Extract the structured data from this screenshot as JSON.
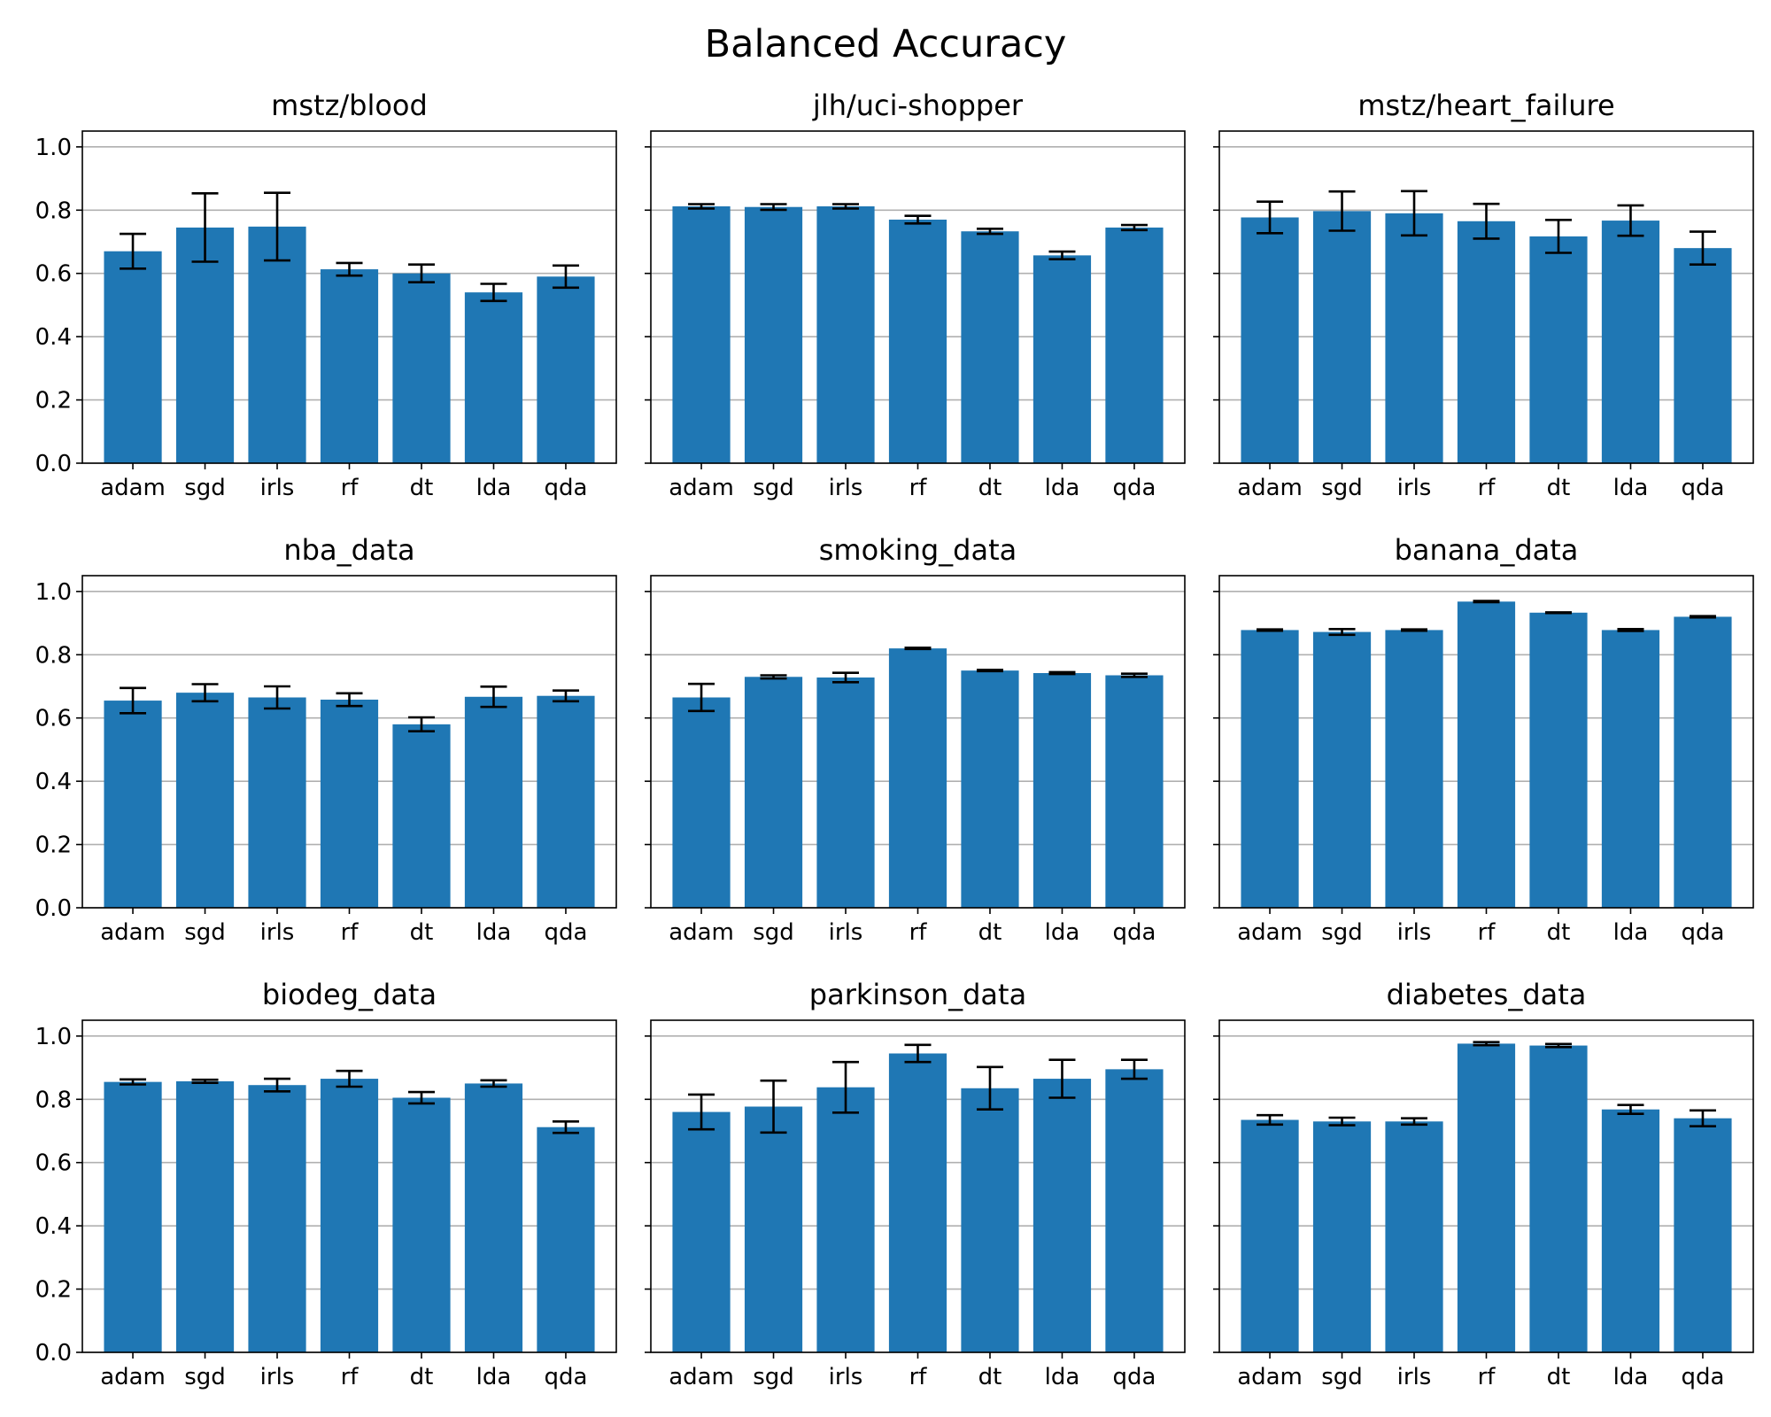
{
  "chart_data": {
    "type": "bar",
    "title": "Balanced Accuracy",
    "categories": [
      "adam",
      "sgd",
      "irls",
      "rf",
      "dt",
      "lda",
      "qda"
    ],
    "ylim": [
      0.0,
      1.0
    ],
    "yticks": [
      "0.0",
      "0.2",
      "0.4",
      "0.6",
      "0.8",
      "1.0"
    ],
    "grid": "y",
    "bar_color": "#1f77b4",
    "panels": [
      {
        "title": "mstz/blood",
        "values": [
          0.67,
          0.745,
          0.748,
          0.613,
          0.6,
          0.54,
          0.59
        ],
        "errors": [
          0.055,
          0.108,
          0.107,
          0.02,
          0.028,
          0.027,
          0.035
        ]
      },
      {
        "title": "jlh/uci-shopper",
        "values": [
          0.812,
          0.81,
          0.812,
          0.77,
          0.733,
          0.657,
          0.745
        ],
        "errors": [
          0.007,
          0.009,
          0.007,
          0.012,
          0.008,
          0.012,
          0.008
        ]
      },
      {
        "title": "mstz/heart_failure",
        "values": [
          0.777,
          0.797,
          0.79,
          0.765,
          0.717,
          0.767,
          0.68
        ],
        "errors": [
          0.05,
          0.062,
          0.07,
          0.055,
          0.052,
          0.048,
          0.052
        ]
      },
      {
        "title": "nba_data",
        "values": [
          0.655,
          0.68,
          0.665,
          0.658,
          0.58,
          0.667,
          0.67
        ],
        "errors": [
          0.04,
          0.027,
          0.035,
          0.02,
          0.022,
          0.032,
          0.017
        ]
      },
      {
        "title": "smoking_data",
        "values": [
          0.665,
          0.73,
          0.728,
          0.82,
          0.75,
          0.742,
          0.735
        ],
        "errors": [
          0.043,
          0.005,
          0.015,
          0.002,
          0.002,
          0.003,
          0.005
        ]
      },
      {
        "title": "banana_data",
        "values": [
          0.878,
          0.872,
          0.878,
          0.968,
          0.933,
          0.878,
          0.92
        ],
        "errors": [
          0.002,
          0.009,
          0.002,
          0.002,
          0.001,
          0.003,
          0.002
        ]
      },
      {
        "title": "biodeg_data",
        "values": [
          0.855,
          0.857,
          0.845,
          0.865,
          0.805,
          0.85,
          0.712
        ],
        "errors": [
          0.008,
          0.005,
          0.02,
          0.025,
          0.018,
          0.01,
          0.018
        ]
      },
      {
        "title": "parkinson_data",
        "values": [
          0.76,
          0.777,
          0.838,
          0.945,
          0.835,
          0.865,
          0.895
        ],
        "errors": [
          0.055,
          0.082,
          0.08,
          0.027,
          0.067,
          0.06,
          0.03
        ]
      },
      {
        "title": "diabetes_data",
        "values": [
          0.735,
          0.73,
          0.73,
          0.976,
          0.97,
          0.768,
          0.74
        ],
        "errors": [
          0.015,
          0.012,
          0.01,
          0.005,
          0.005,
          0.014,
          0.025
        ]
      }
    ]
  }
}
